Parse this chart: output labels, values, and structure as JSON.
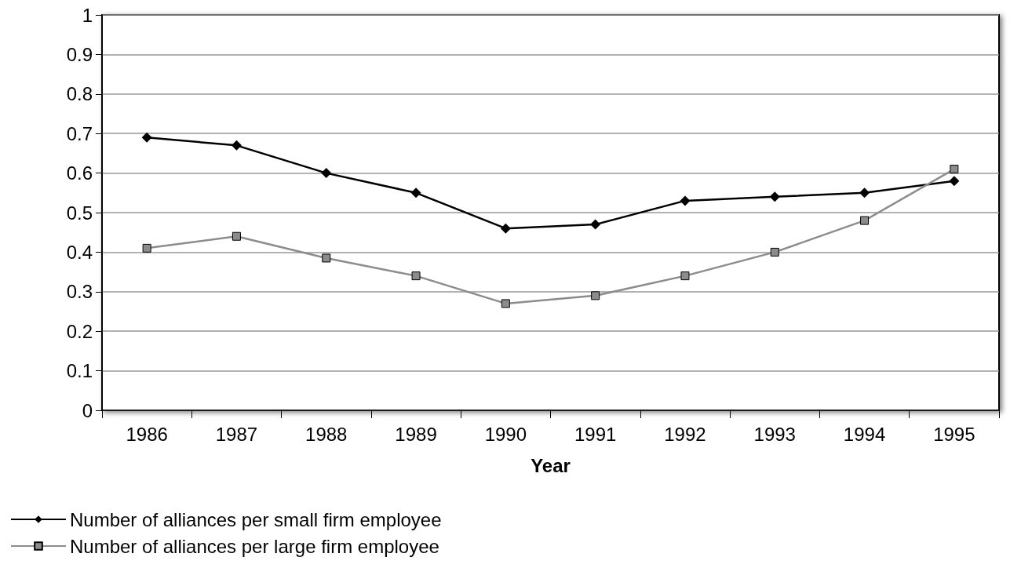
{
  "chart_data": {
    "type": "line",
    "xlabel": "Year",
    "categories": [
      "1986",
      "1987",
      "1988",
      "1989",
      "1990",
      "1991",
      "1992",
      "1993",
      "1994",
      "1995"
    ],
    "series": [
      {
        "name": "Number of alliances per small firm employee",
        "color": "#000000",
        "marker": "diamond",
        "values": [
          0.69,
          0.67,
          0.6,
          0.55,
          0.46,
          0.47,
          0.53,
          0.54,
          0.55,
          0.58
        ]
      },
      {
        "name": "Number of alliances per large firm employee",
        "color": "#8c8c8c",
        "marker": "square",
        "values": [
          0.41,
          0.44,
          0.385,
          0.34,
          0.27,
          0.29,
          0.34,
          0.4,
          0.48,
          0.61
        ]
      }
    ],
    "ylim": [
      0,
      1
    ],
    "yticks": [
      0,
      0.1,
      0.2,
      0.3,
      0.4,
      0.5,
      0.6,
      0.7,
      0.8,
      0.9,
      1
    ],
    "grid": "y",
    "legend": "bottom left",
    "line_style": "solid"
  }
}
